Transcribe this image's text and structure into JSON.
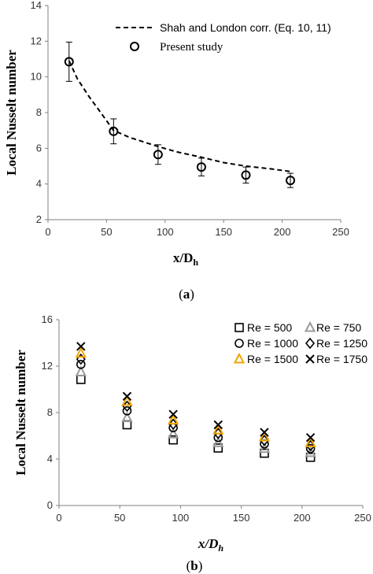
{
  "chart_data": [
    {
      "type": "scatter",
      "panel_label": "(a)",
      "xlabel": "x/D_h",
      "ylabel": "Local Nusselt number",
      "xlim": [
        0,
        250
      ],
      "ylim": [
        2,
        14
      ],
      "xticks": [
        0,
        50,
        100,
        150,
        200,
        250
      ],
      "yticks": [
        2,
        4,
        6,
        8,
        10,
        12,
        14
      ],
      "grid": false,
      "legend_position": "top-right",
      "series": [
        {
          "name": "Shah and London corr. (Eq. 10, 11)",
          "style": "dashed-line",
          "x": [
            18,
            25,
            35,
            45,
            56,
            70,
            94,
            110,
            131,
            150,
            169,
            190,
            207
          ],
          "y": [
            10.9,
            9.9,
            8.9,
            8.0,
            7.0,
            6.6,
            6.1,
            5.8,
            5.5,
            5.2,
            5.0,
            4.85,
            4.7
          ]
        },
        {
          "name": "Present study",
          "style": "open-circle-errorbar",
          "x": [
            18,
            56,
            94,
            131,
            169,
            207
          ],
          "y": [
            10.85,
            6.95,
            5.65,
            4.95,
            4.5,
            4.2
          ],
          "err": [
            1.1,
            0.7,
            0.55,
            0.5,
            0.45,
            0.4
          ]
        }
      ]
    },
    {
      "type": "scatter",
      "panel_label": "(b)",
      "xlabel": "x/D_h",
      "ylabel": "Local Nusselt number",
      "xlim": [
        0,
        250
      ],
      "ylim": [
        0,
        16
      ],
      "xticks": [
        0,
        50,
        100,
        150,
        200,
        250
      ],
      "yticks": [
        0,
        4,
        8,
        12,
        16
      ],
      "grid": false,
      "legend_position": "top-right",
      "x": [
        18,
        56,
        94,
        131,
        169,
        207
      ],
      "series": [
        {
          "name": "Re = 500",
          "marker": "square",
          "color": "#000000",
          "values": [
            10.85,
            6.95,
            5.65,
            4.95,
            4.5,
            4.15
          ]
        },
        {
          "name": "Re = 750",
          "marker": "triangle",
          "color": "#999999",
          "values": [
            11.5,
            7.55,
            6.15,
            5.4,
            4.9,
            4.55
          ]
        },
        {
          "name": "Re = 1000",
          "marker": "circle",
          "color": "#000000",
          "values": [
            12.15,
            8.15,
            6.7,
            5.85,
            5.3,
            4.9
          ]
        },
        {
          "name": "Re = 1250",
          "marker": "diamond",
          "color": "#000000",
          "values": [
            12.6,
            8.55,
            7.0,
            6.2,
            5.6,
            5.15
          ]
        },
        {
          "name": "Re = 1500",
          "marker": "triangle",
          "color": "#f0a500",
          "values": [
            13.1,
            8.95,
            7.35,
            6.5,
            5.9,
            5.4
          ]
        },
        {
          "name": "Re = 1750",
          "marker": "x",
          "color": "#000000",
          "values": [
            13.7,
            9.4,
            7.85,
            6.95,
            6.3,
            5.85
          ]
        }
      ]
    }
  ],
  "colors": {
    "axis": "#808080",
    "ink": "#000000",
    "orange": "#f0a500",
    "gray_marker": "#999999"
  }
}
